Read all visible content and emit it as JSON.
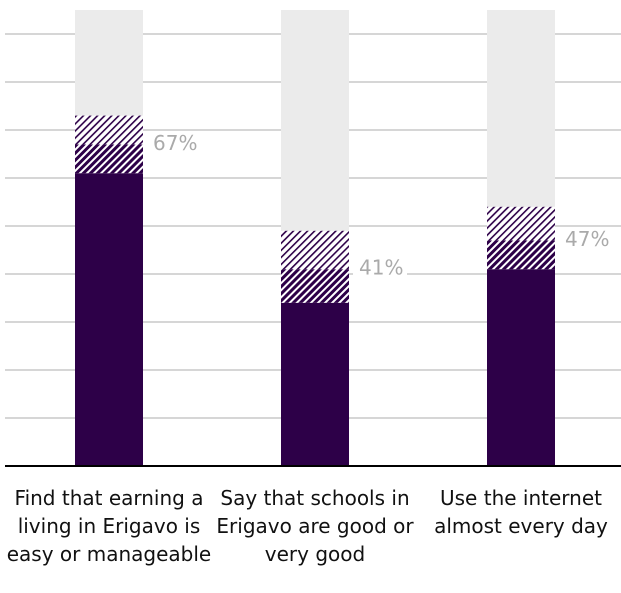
{
  "chart_data": {
    "type": "stacked_bar",
    "categories": [
      "Find that earning a living in Erigavo is easy or manageable",
      "Say that schools in Erigavo are good or very good",
      "Use the internet almost every day"
    ],
    "series": [
      {
        "color": "#2d0048",
        "pattern": "solid",
        "values": [
          61,
          34,
          41
        ]
      },
      {
        "color": "#2d0048",
        "pattern": "dense",
        "values": [
          6,
          7,
          6
        ]
      },
      {
        "color": "#2d0048",
        "pattern": "light",
        "values": [
          6,
          8,
          7
        ]
      }
    ],
    "totals": {
      "values": [
        67,
        41,
        47
      ],
      "value_labels": [
        "67%",
        "41%",
        "47%"
      ]
    },
    "ylim": [
      0,
      95
    ],
    "yticks": [
      10,
      20,
      30,
      40,
      50,
      60,
      70,
      80,
      90
    ],
    "grid": true
  }
}
